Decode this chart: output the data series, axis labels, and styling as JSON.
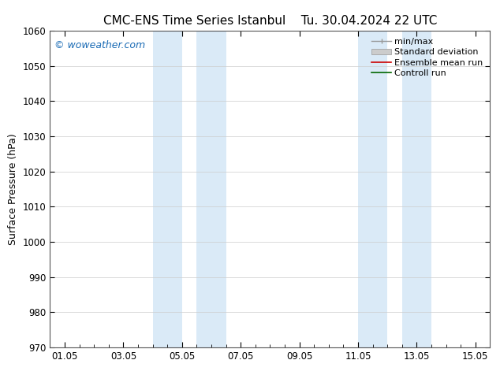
{
  "title_left": "CMC-ENS Time Series Istanbul",
  "title_right": "Tu. 30.04.2024 22 UTC",
  "ylabel": "Surface Pressure (hPa)",
  "ylim": [
    970,
    1060
  ],
  "yticks": [
    970,
    980,
    990,
    1000,
    1010,
    1020,
    1030,
    1040,
    1050,
    1060
  ],
  "xtick_labels": [
    "01.05",
    "03.05",
    "05.05",
    "07.05",
    "09.05",
    "11.05",
    "13.05",
    "15.05"
  ],
  "xtick_positions": [
    0,
    2,
    4,
    6,
    8,
    10,
    12,
    14
  ],
  "xlim": [
    -0.5,
    14.5
  ],
  "shaded_bands": [
    {
      "x_start": 3.0,
      "x_end": 4.0,
      "color": "#daeaf7"
    },
    {
      "x_start": 4.5,
      "x_end": 5.5,
      "color": "#daeaf7"
    },
    {
      "x_start": 10.0,
      "x_end": 11.0,
      "color": "#daeaf7"
    },
    {
      "x_start": 11.5,
      "x_end": 12.5,
      "color": "#daeaf7"
    }
  ],
  "watermark_text": "© woweather.com",
  "watermark_color": "#1a6bb5",
  "bg_color": "#ffffff",
  "grid_color": "#cccccc",
  "title_fontsize": 11,
  "label_fontsize": 9,
  "tick_fontsize": 8.5,
  "legend_fontsize": 8
}
